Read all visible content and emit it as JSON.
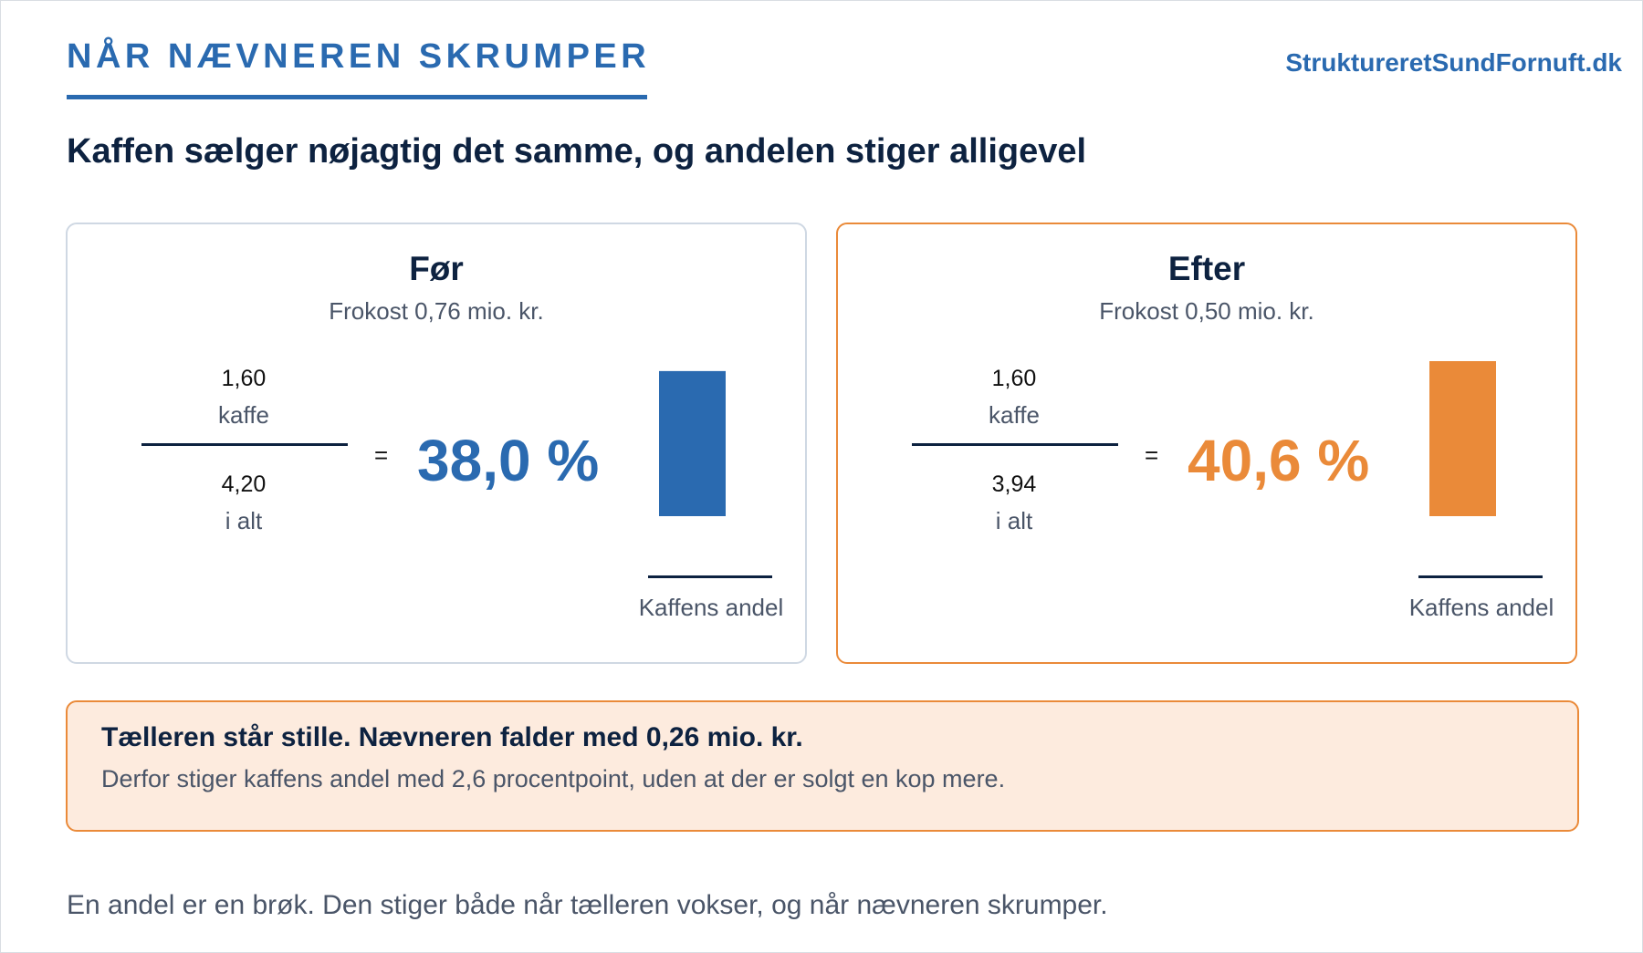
{
  "eyebrow": "NÅR NÆVNEREN SKRUMPER",
  "brand": "StruktureretSundFornuft.dk",
  "headline": "Kaffen sælger nøjagtig det samme, og andelen stiger alligevel",
  "colors": {
    "blue": "#2a6ab0",
    "orange": "#ea8a39",
    "navy": "#0d2240"
  },
  "cards": {
    "before": {
      "title": "Før",
      "subtitle": "Frokost 0,76 mio. kr.",
      "numerator": "1,60",
      "numerator_label": "kaffe",
      "denominator": "4,20",
      "denominator_label": "i alt",
      "equals": "=",
      "percent": "38,0 %",
      "bar_label": "Kaffens andel"
    },
    "after": {
      "title": "Efter",
      "subtitle": "Frokost 0,50 mio. kr.",
      "numerator": "1,60",
      "numerator_label": "kaffe",
      "denominator": "3,94",
      "denominator_label": "i alt",
      "equals": "=",
      "percent": "40,6 %",
      "bar_label": "Kaffens andel"
    }
  },
  "callout": {
    "title": "Tælleren står stille. Nævneren falder med 0,26 mio. kr.",
    "body": "Derfor stiger kaffens andel med 2,6 procentpoint, uden at der er solgt en kop mere."
  },
  "footer": "En andel er en brøk. Den stiger både når tælleren vokser, og når nævneren skrumper.",
  "chart_data": [
    {
      "type": "bar",
      "categories": [
        "Kaffens andel"
      ],
      "values": [
        38.0
      ],
      "color": "#2a6ab0",
      "title": "Før",
      "xlabel": "Kaffens andel",
      "ylabel": "",
      "ylim": [
        0,
        40.6
      ]
    },
    {
      "type": "bar",
      "categories": [
        "Kaffens andel"
      ],
      "values": [
        40.6
      ],
      "color": "#ea8a39",
      "title": "Efter",
      "xlabel": "Kaffens andel",
      "ylabel": "",
      "ylim": [
        0,
        40.6
      ]
    }
  ]
}
